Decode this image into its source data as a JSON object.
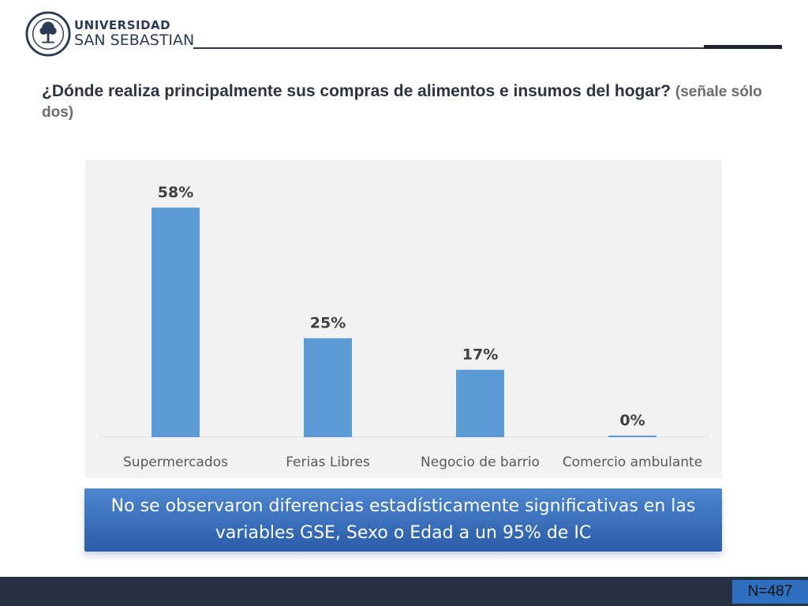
{
  "header": {
    "logo_line1": "UNIVERSIDAD",
    "logo_line2": "SAN SEBASTIAN"
  },
  "title": {
    "main": "¿Dónde realiza principalmente sus compras de alimentos e insumos del hogar?",
    "sub": "(señale sólo dos)"
  },
  "chart_data": {
    "type": "bar",
    "categories": [
      "Supermercados",
      "Ferias Libres",
      "Negocio de barrio",
      "Comercio ambulante"
    ],
    "values": [
      58,
      25,
      17,
      0
    ],
    "value_labels": [
      "58%",
      "25%",
      "17%",
      "0%"
    ],
    "ylim": [
      0,
      62
    ],
    "grid": false,
    "bar_color": "#5b9bd5"
  },
  "note": {
    "text": "No se observaron diferencias estadísticamente significativas en las variables GSE, Sexo o Edad a un 95% de IC"
  },
  "footer": {
    "sample": "N=487"
  }
}
